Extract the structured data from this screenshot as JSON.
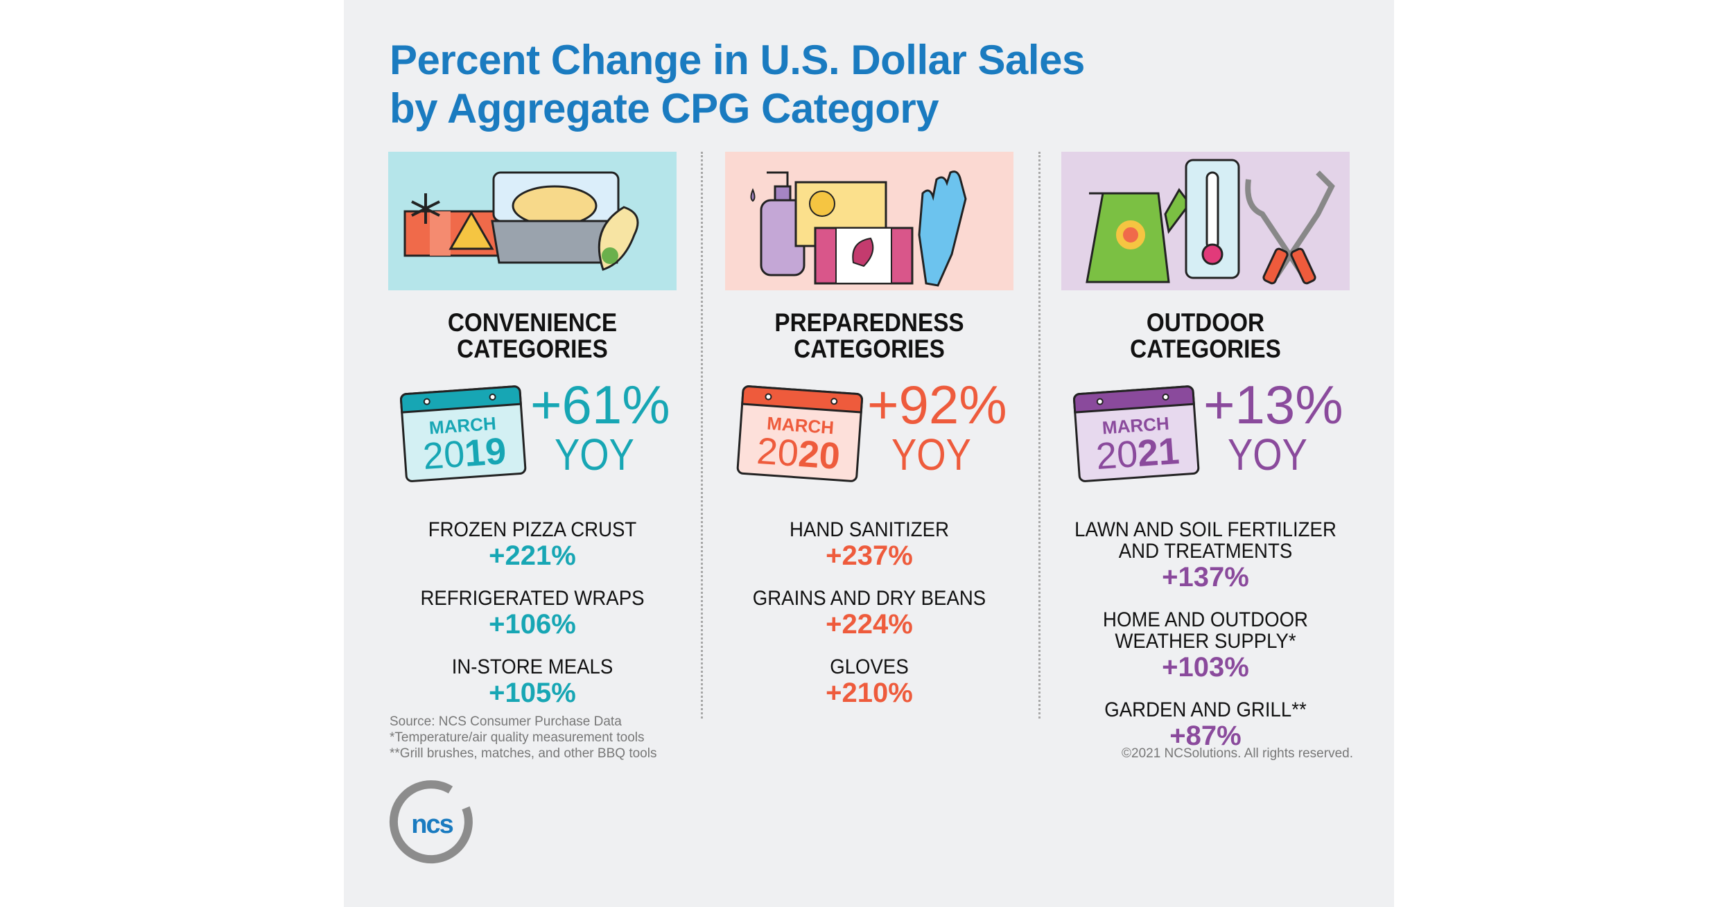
{
  "title": {
    "line1": "Percent Change in U.S. Dollar Sales",
    "line2": "by Aggregate CPG Category"
  },
  "colors": {
    "title": "#1a7bc0",
    "convenience": "#17a6b4",
    "preparedness": "#ee5b3c",
    "outdoor": "#8a4a9c"
  },
  "columns": [
    {
      "heading1": "CONVENIENCE",
      "heading2": "CATEGORIES",
      "month": "MARCH",
      "year_a": "20",
      "year_b": "19",
      "change": "+61%",
      "yoy": "YOY",
      "illustration": "frozen-pizza-chicken-wrap",
      "items": [
        {
          "label": "FROZEN PIZZA CRUST",
          "value": "+221%"
        },
        {
          "label": "REFRIGERATED WRAPS",
          "value": "+106%"
        },
        {
          "label": "IN-STORE MEALS",
          "value": "+105%"
        }
      ]
    },
    {
      "heading1": "PREPAREDNESS",
      "heading2": "CATEGORIES",
      "month": "MARCH",
      "year_a": "20",
      "year_b": "20",
      "change": "+92%",
      "yoy": "YOY",
      "illustration": "sanitizer-beans-gloves",
      "items": [
        {
          "label": "HAND SANITIZER",
          "value": "+237%"
        },
        {
          "label": "GRAINS AND DRY BEANS",
          "value": "+224%"
        },
        {
          "label": "GLOVES",
          "value": "+210%"
        }
      ]
    },
    {
      "heading1": "OUTDOOR",
      "heading2": "CATEGORIES",
      "month": "MARCH",
      "year_a": "20",
      "year_b": "21",
      "change": "+13%",
      "yoy": "YOY",
      "illustration": "watering-can-thermometer-grill-tools",
      "items": [
        {
          "label": "LAWN AND SOIL FERTILIZER",
          "label2": "AND TREATMENTS",
          "value": "+137%"
        },
        {
          "label": "HOME AND OUTDOOR",
          "label2": "WEATHER SUPPLY*",
          "value": "+103%"
        },
        {
          "label": "GARDEN AND GRILL**",
          "value": "+87%"
        }
      ]
    }
  ],
  "footnotes": {
    "source": "Source: NCS Consumer Purchase Data",
    "note1": "*Temperature/air quality measurement tools",
    "note2": "**Grill brushes, matches, and other BBQ tools"
  },
  "copyright": "©2021 NCSolutions. All rights reserved.",
  "logo": {
    "text": "ncs"
  }
}
